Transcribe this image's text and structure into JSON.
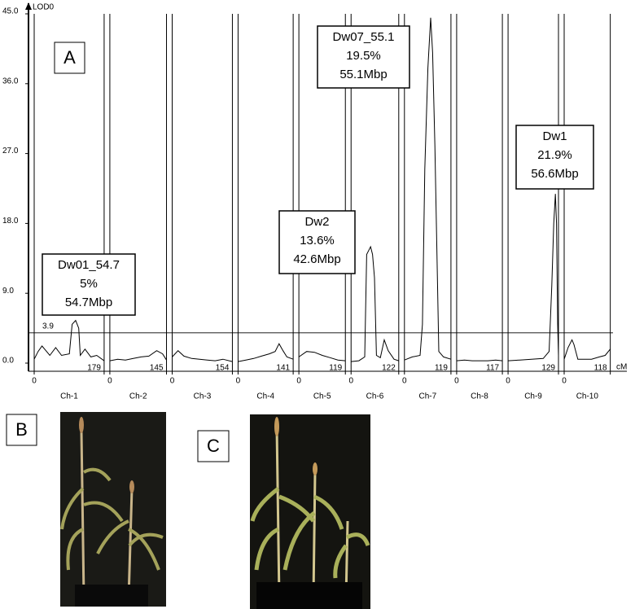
{
  "chart_data": {
    "type": "lod-profile",
    "y_label": "LOD0",
    "x_label": "cM",
    "ylim": [
      0,
      45
    ],
    "yticks": [
      {
        "value": 0,
        "label": "0.0"
      },
      {
        "value": 9,
        "label": "9.0"
      },
      {
        "value": 18,
        "label": "18.0"
      },
      {
        "value": 27,
        "label": "27.0"
      },
      {
        "value": 36,
        "label": "36.0"
      },
      {
        "value": 45,
        "label": "45.0"
      }
    ],
    "threshold": 3.9,
    "color": "#000000",
    "chromosomes": [
      {
        "name": "Ch-1",
        "start": 0,
        "length": 179,
        "x": [
          0,
          10,
          20,
          30,
          40,
          55,
          70,
          90,
          97,
          106,
          114,
          118,
          130,
          145,
          160,
          179
        ],
        "values": [
          0.5,
          1.5,
          2.2,
          1.6,
          1.0,
          2.0,
          1.0,
          1.2,
          5.0,
          5.5,
          4.5,
          1.0,
          1.8,
          0.8,
          1.0,
          0.3
        ]
      },
      {
        "name": "Ch-2",
        "start": 0,
        "length": 145,
        "x": [
          0,
          20,
          40,
          60,
          80,
          100,
          120,
          135,
          145
        ],
        "values": [
          0.3,
          0.5,
          0.4,
          0.6,
          0.8,
          0.9,
          1.6,
          1.2,
          0.4
        ]
      },
      {
        "name": "Ch-3",
        "start": 0,
        "length": 154,
        "x": [
          0,
          15,
          30,
          50,
          70,
          90,
          110,
          130,
          154
        ],
        "values": [
          0.8,
          1.6,
          0.9,
          0.6,
          0.5,
          0.4,
          0.3,
          0.5,
          0.2
        ]
      },
      {
        "name": "Ch-4",
        "start": 0,
        "length": 141,
        "x": [
          0,
          20,
          40,
          60,
          80,
          95,
          105,
          115,
          125,
          141
        ],
        "values": [
          0.2,
          0.4,
          0.6,
          0.9,
          1.2,
          1.5,
          2.5,
          1.6,
          0.8,
          0.5
        ]
      },
      {
        "name": "Ch-5",
        "start": 0,
        "length": 119,
        "x": [
          0,
          20,
          40,
          60,
          80,
          100,
          119
        ],
        "values": [
          0.8,
          1.5,
          1.4,
          1.0,
          0.7,
          0.4,
          0.3
        ]
      },
      {
        "name": "Ch-6",
        "start": 0,
        "length": 122,
        "x": [
          0,
          20,
          35,
          40,
          45,
          50,
          55,
          60,
          65,
          75,
          85,
          95,
          110,
          122
        ],
        "values": [
          0.2,
          0.3,
          0.8,
          14.0,
          14.5,
          15.0,
          14.0,
          11.0,
          1.0,
          0.7,
          3.0,
          1.6,
          0.5,
          0.3
        ]
      },
      {
        "name": "Ch-7",
        "start": 0,
        "length": 119,
        "x": [
          0,
          20,
          40,
          46,
          52,
          60,
          67,
          72,
          78,
          84,
          88,
          100,
          119
        ],
        "values": [
          0.4,
          0.8,
          1.0,
          5,
          25,
          38,
          44.5,
          40,
          28,
          12,
          1.5,
          0.8,
          0.5
        ]
      },
      {
        "name": "Ch-8",
        "start": 0,
        "length": 117,
        "x": [
          0,
          20,
          40,
          60,
          80,
          100,
          117
        ],
        "values": [
          0.3,
          0.4,
          0.3,
          0.3,
          0.3,
          0.4,
          0.3
        ]
      },
      {
        "name": "Ch-9",
        "start": 0,
        "length": 129,
        "x": [
          0,
          30,
          60,
          90,
          105,
          112,
          117,
          121,
          124,
          127,
          129
        ],
        "values": [
          0.3,
          0.4,
          0.5,
          0.6,
          1.5,
          10,
          18,
          21.8,
          18,
          5,
          1.0
        ]
      },
      {
        "name": "Ch-10",
        "start": 0,
        "length": 118,
        "x": [
          0,
          10,
          20,
          25,
          35,
          50,
          70,
          90,
          105,
          118
        ],
        "values": [
          0.5,
          2.0,
          3.0,
          2.4,
          0.5,
          0.5,
          0.5,
          0.8,
          1.0,
          1.8
        ]
      }
    ],
    "annotations": [
      {
        "lines": [
          "Dw01_54.7",
          "5%",
          "54.7Mbp"
        ]
      },
      {
        "lines": [
          "Dw07_55.1",
          "19.5%",
          "55.1Mbp"
        ]
      },
      {
        "lines": [
          "Dw2",
          "13.6%",
          "42.6Mbp"
        ]
      },
      {
        "lines": [
          "Dw1",
          "21.9%",
          "56.6Mbp"
        ]
      }
    ]
  },
  "panel_labels": [
    "A",
    "B",
    "C"
  ]
}
